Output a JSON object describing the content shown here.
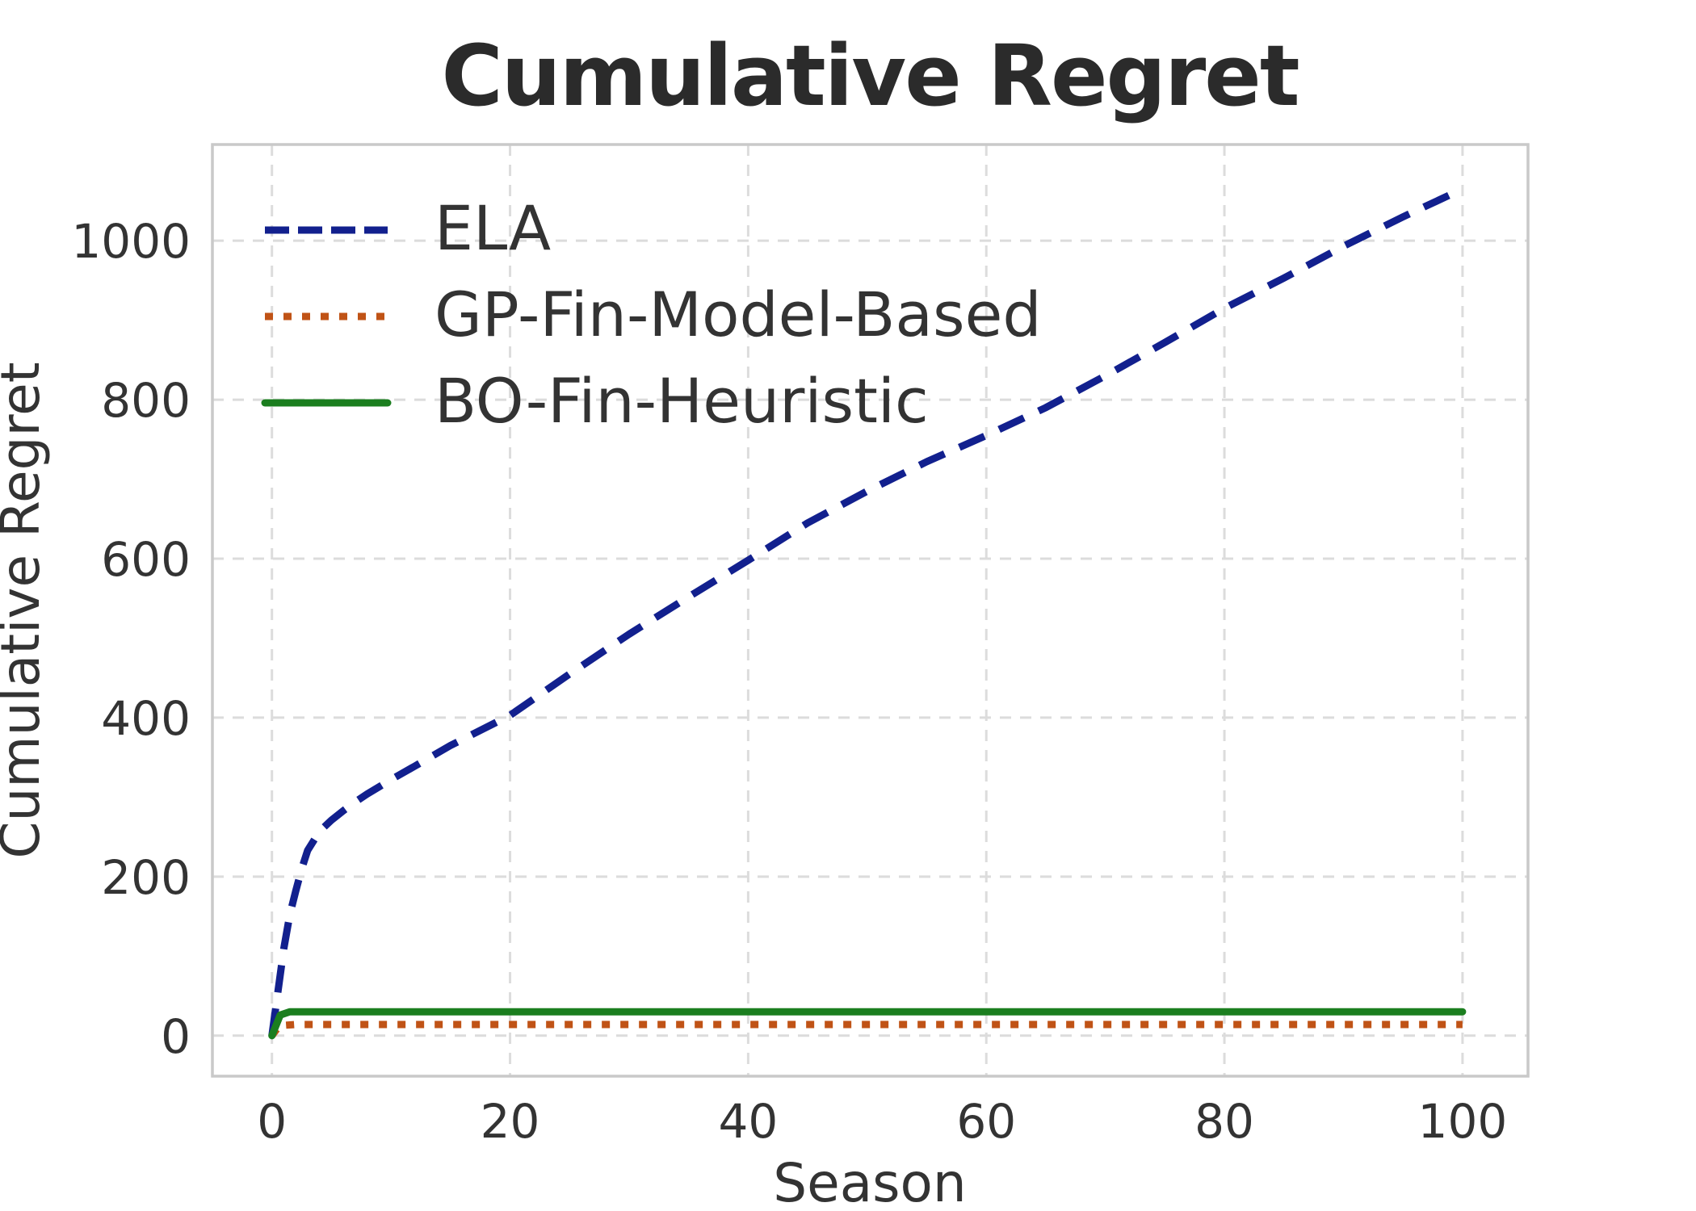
{
  "figure": {
    "background": "#ffffff",
    "text_color": "#333333",
    "title_color": "#2b2b2b",
    "grid_color": "#dcdcdc",
    "spine_color": "#c9c9c9"
  },
  "chart_data": {
    "type": "line",
    "title": "Cumulative Regret",
    "xlabel": "Season",
    "ylabel": "Cumulative Regret",
    "xlim": [
      -5,
      105.5
    ],
    "ylim": [
      -51,
      1121
    ],
    "x_ticks": [
      0,
      20,
      40,
      60,
      80,
      100
    ],
    "y_ticks": [
      0,
      200,
      400,
      600,
      800,
      1000
    ],
    "grid": true,
    "grid_style": "dashed",
    "legend_position": "upper-left",
    "legend_frame": false,
    "series": [
      {
        "name": "ELA",
        "color": "#12208e",
        "line_style": "dashed",
        "line_width": 9,
        "points": [
          [
            0,
            0
          ],
          [
            0.5,
            55
          ],
          [
            1,
            110
          ],
          [
            1.5,
            152
          ],
          [
            2,
            182
          ],
          [
            2.5,
            210
          ],
          [
            3,
            233
          ],
          [
            4,
            257
          ],
          [
            5,
            271
          ],
          [
            6,
            283
          ],
          [
            7,
            294
          ],
          [
            8,
            304
          ],
          [
            9,
            313
          ],
          [
            10,
            322
          ],
          [
            12,
            339
          ],
          [
            15,
            365
          ],
          [
            20,
            403
          ],
          [
            25,
            455
          ],
          [
            30,
            505
          ],
          [
            35,
            552
          ],
          [
            40,
            598
          ],
          [
            45,
            645
          ],
          [
            50,
            685
          ],
          [
            55,
            722
          ],
          [
            60,
            755
          ],
          [
            65,
            790
          ],
          [
            70,
            830
          ],
          [
            75,
            872
          ],
          [
            80,
            915
          ],
          [
            85,
            953
          ],
          [
            90,
            993
          ],
          [
            95,
            1030
          ],
          [
            100,
            1065
          ]
        ]
      },
      {
        "name": "GP-Fin-Model-Based",
        "color": "#c05316",
        "line_style": "dotted",
        "line_width": 9,
        "points": [
          [
            0,
            0
          ],
          [
            0.5,
            10
          ],
          [
            1,
            13
          ],
          [
            2,
            14
          ],
          [
            100,
            14
          ]
        ]
      },
      {
        "name": "BO-Fin-Heuristic",
        "color": "#1b7e1f",
        "line_style": "solid",
        "line_width": 9,
        "points": [
          [
            0,
            0
          ],
          [
            0.7,
            26
          ],
          [
            1.5,
            30
          ],
          [
            2,
            30
          ],
          [
            100,
            30
          ]
        ]
      }
    ]
  }
}
